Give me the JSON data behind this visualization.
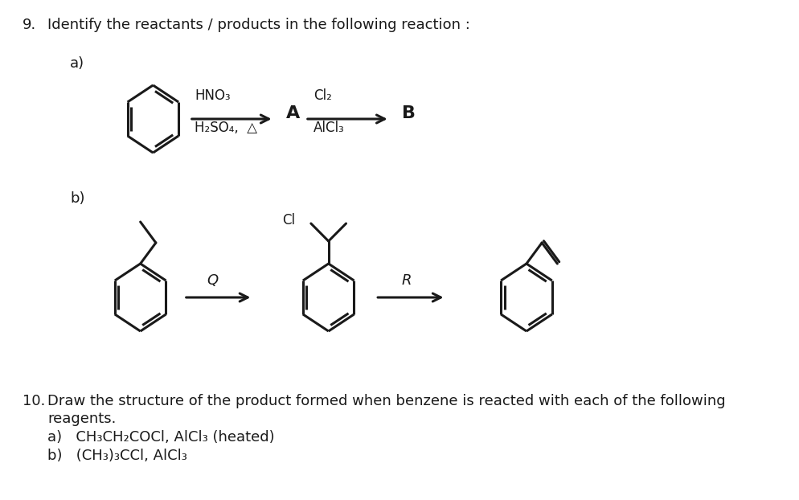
{
  "title_num": "9.",
  "title_text": "Identify the reactants / products in the following reaction :",
  "bg_color": "#ffffff",
  "text_color": "#1a1a1a",
  "part_a_label": "a)",
  "part_b_label": "b)",
  "reaction_a_reagent1_line1": "HNO₃",
  "reaction_a_reagent1_line2": "H₂SO₄,  △",
  "reaction_a_A": "A",
  "reaction_a_reagent2_line1": "Cl₂",
  "reaction_a_reagent2_line2": "AlCl₃",
  "reaction_a_B": "B",
  "reaction_b_Q": "Q",
  "reaction_b_R": "R",
  "reaction_b_Cl": "Cl",
  "q10_num": "10.",
  "q10_text": "Draw the structure of the product formed when benzene is reacted with each of the following",
  "q10_text2": "reagents.",
  "q10_a": "a)   CH₃CH₂COCl, AlCl₃ (heated)",
  "q10_b": "b)   (CH₃)₃CCl, AlCl₃",
  "fontsize_main": 13,
  "fontsize_label": 13,
  "fontsize_reagent": 12
}
